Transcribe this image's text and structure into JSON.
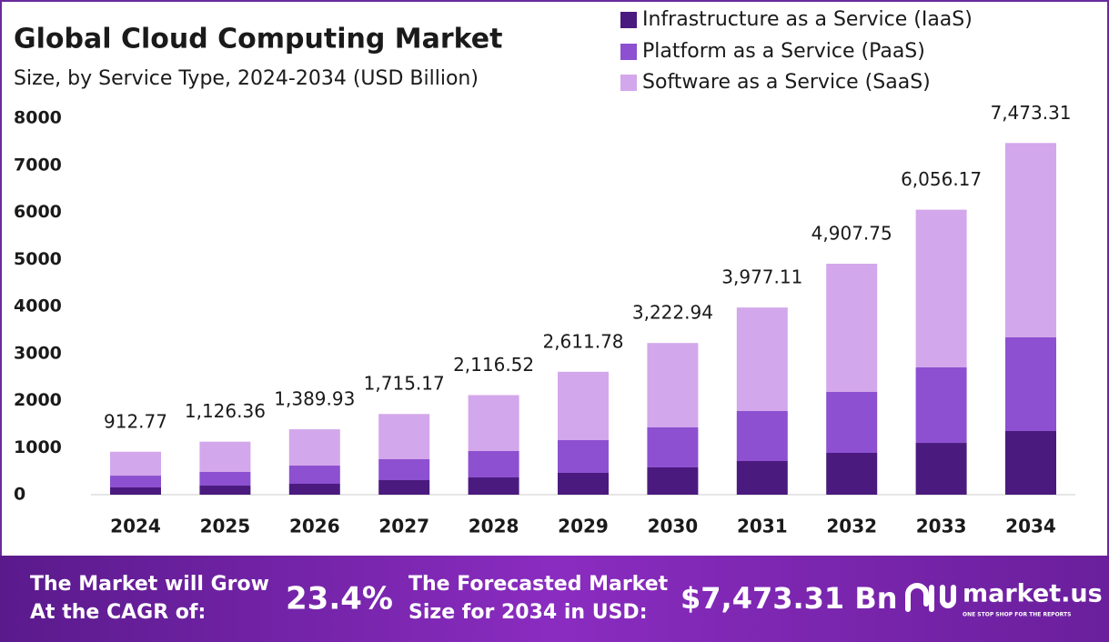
{
  "chart_data": {
    "type": "stacked_bar",
    "title": "Global Cloud Computing Market",
    "subtitle": "Size, by Service Type, 2024-2034 (USD Billion)",
    "categories": [
      "2024",
      "2025",
      "2026",
      "2027",
      "2028",
      "2029",
      "2030",
      "2031",
      "2032",
      "2033",
      "2034"
    ],
    "series": [
      {
        "name": "Infrastructure as a Service (IaaS)",
        "color": "#4b1a7f",
        "values": [
          155,
          193,
          232,
          309,
          367,
          464,
          580,
          715,
          889,
          1101,
          1353
        ]
      },
      {
        "name": "Platform as a Service (PaaS)",
        "color": "#8c50d0",
        "values": [
          250,
          290,
          386,
          445,
          561,
          695,
          850,
          1063,
          1295,
          1604,
          1990
        ]
      },
      {
        "name": "Software as a Service (SaaS)",
        "color": "#d3a7eb",
        "values": [
          507.77,
          643.36,
          771.93,
          961.17,
          1188.52,
          1452.78,
          1792.94,
          2199.11,
          2723.75,
          3351.17,
          4130.31
        ]
      }
    ],
    "totals": [
      912.77,
      1126.36,
      1389.93,
      1715.17,
      2116.52,
      2611.78,
      3222.94,
      3977.11,
      4907.75,
      6056.17,
      7473.31
    ],
    "total_labels": [
      "912.77",
      "1,126.36",
      "1,389.93",
      "1,715.17",
      "2,116.52",
      "2,611.78",
      "3,222.94",
      "3,977.11",
      "4,907.75",
      "6,056.17",
      "7,473.31"
    ],
    "ylim": [
      0,
      8000
    ],
    "yticks": [
      0,
      1000,
      2000,
      3000,
      4000,
      5000,
      6000,
      7000,
      8000
    ],
    "legend": "top-right"
  },
  "footer": {
    "cagr_line1": "The Market will Grow",
    "cagr_line2": "At the CAGR of:",
    "cagr": "23.4%",
    "forecast_line1": "The Forecasted Market",
    "forecast_line2": "Size for 2034 in USD:",
    "forecast": "$7,473.31 Bn",
    "brand": "market.us",
    "tagline": "ONE STOP SHOP FOR THE REPORTS"
  }
}
